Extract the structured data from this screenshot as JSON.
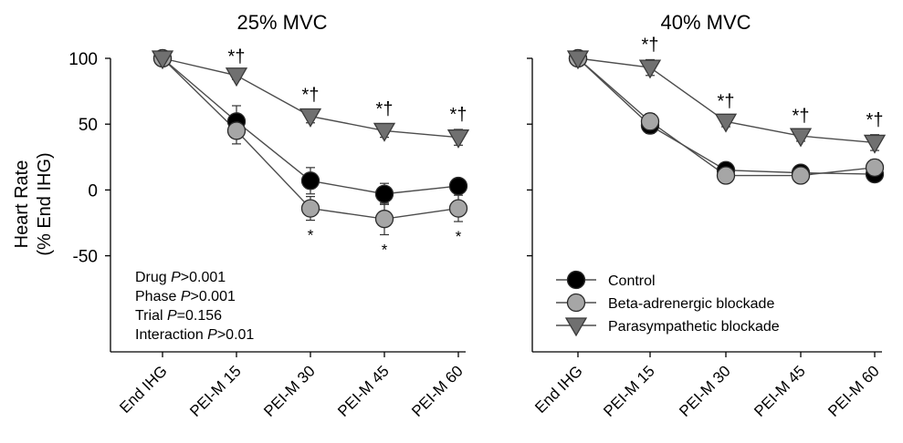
{
  "figure": {
    "ylabel_line1": "Heart Rate",
    "ylabel_line2": "(% End IHG)"
  },
  "chart_data": [
    {
      "type": "line",
      "title": "25% MVC",
      "ylabel": "Heart Rate (% End IHG)",
      "ylim": [
        -50,
        100
      ],
      "yticks": [
        -50,
        0,
        50,
        100
      ],
      "categories": [
        "End IHG",
        "PEI-M 15",
        "PEI-M 30",
        "PEI-M 45",
        "PEI-M 60"
      ],
      "series": [
        {
          "name": "Control",
          "marker": "circle",
          "fill": "#000000",
          "values": [
            100,
            52,
            7,
            -3,
            3
          ],
          "error": [
            0,
            12,
            10,
            8,
            5
          ]
        },
        {
          "name": "Beta-adrenergic blockade",
          "marker": "circle",
          "fill": "#a6a6a6",
          "values": [
            100,
            45,
            -14,
            -22,
            -14
          ],
          "error": [
            0,
            10,
            9,
            12,
            10
          ]
        },
        {
          "name": "Parasympathetic blockade",
          "marker": "triangle-down",
          "fill": "#707070",
          "values": [
            100,
            87,
            56,
            45,
            40
          ],
          "error": [
            0,
            3,
            5,
            5,
            6
          ]
        }
      ],
      "annotations_above": [
        "",
        "*†",
        "*†",
        "*†",
        "*†"
      ],
      "annotations_below": [
        "",
        "",
        "*",
        "*",
        "*"
      ],
      "stats_text": [
        {
          "label": "Drug ",
          "p": "P",
          "rest": ">0.001"
        },
        {
          "label": "Phase ",
          "p": "P",
          "rest": ">0.001"
        },
        {
          "label": "Trial ",
          "p": "P",
          "rest": "=0.156"
        },
        {
          "label": "Interaction ",
          "p": "P",
          "rest": ">0.01"
        }
      ]
    },
    {
      "type": "line",
      "title": "40% MVC",
      "ylim": [
        -50,
        100
      ],
      "categories": [
        "End IHG",
        "PEI-M 15",
        "PEI-M 30",
        "PEI-M 45",
        "PEI-M 60"
      ],
      "series": [
        {
          "name": "Control",
          "marker": "circle",
          "fill": "#000000",
          "values": [
            100,
            49,
            15,
            13,
            12
          ],
          "error": [
            0,
            6,
            4,
            3,
            3
          ]
        },
        {
          "name": "Beta-adrenergic blockade",
          "marker": "circle",
          "fill": "#a6a6a6",
          "values": [
            100,
            52,
            11,
            11,
            17
          ],
          "error": [
            0,
            6,
            5,
            4,
            6
          ]
        },
        {
          "name": "Parasympathetic blockade",
          "marker": "triangle-down",
          "fill": "#707070",
          "values": [
            100,
            93,
            52,
            41,
            36
          ],
          "error": [
            0,
            6,
            4,
            4,
            6
          ]
        }
      ],
      "annotations_above": [
        "",
        "*†",
        "*†",
        "*†",
        "*†"
      ],
      "legend_position": "bottom-right"
    }
  ]
}
